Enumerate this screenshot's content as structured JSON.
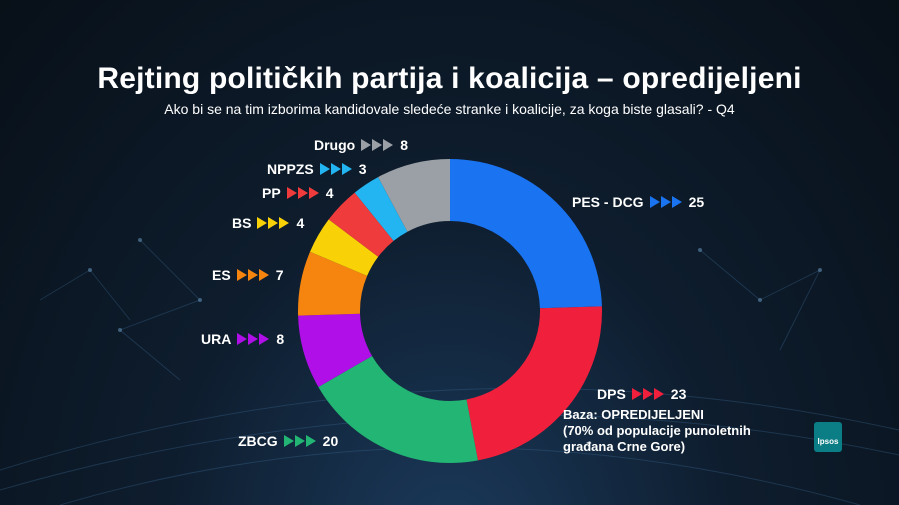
{
  "title": "Rejting političkih partija i koalicija – opredijeljeni",
  "subtitle": "Ako bi se na tim izborima kandidovale sledeće stranke i koalicije, za koga biste glasali? - Q4",
  "base": {
    "line1": "Baza: OPREDIJELJENI",
    "line2": "(70% od populacije punoletnih",
    "line3": "građana Crne Gore)"
  },
  "logo": "Ipsos",
  "chart_data": {
    "type": "pie",
    "style": "donut",
    "slices": [
      {
        "name": "PES - DCG",
        "value": 25,
        "color": "#1a73f0"
      },
      {
        "name": "DPS",
        "value": 23,
        "color": "#f0203c"
      },
      {
        "name": "ZBCG",
        "value": 20,
        "color": "#22b573"
      },
      {
        "name": "URA",
        "value": 8,
        "color": "#b00fe8"
      },
      {
        "name": "ES",
        "value": 7,
        "color": "#f5850f"
      },
      {
        "name": "BS",
        "value": 4,
        "color": "#f8d107"
      },
      {
        "name": "PP",
        "value": 4,
        "color": "#ef3b3b"
      },
      {
        "name": "NPPZS",
        "value": 3,
        "color": "#23b4f2"
      },
      {
        "name": "Drugo",
        "value": 8,
        "color": "#9aa0a6"
      }
    ]
  }
}
